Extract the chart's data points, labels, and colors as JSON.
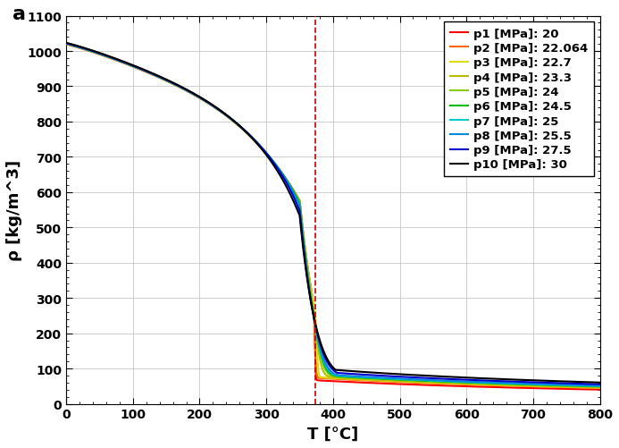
{
  "pressures": [
    20,
    22.064,
    22.7,
    23.3,
    24,
    24.5,
    25,
    25.5,
    27.5,
    30
  ],
  "labels": [
    "p1 [MPa]: 20",
    "p2 [MPa]: 22.064",
    "p3 [MPa]: 22.7",
    "p4 [MPa]: 23.3",
    "p5 [MPa]: 24",
    "p6 [MPa]: 24.5",
    "p7 [MPa]: 25",
    "p8 [MPa]: 25.5",
    "p9 [MPa]: 27.5",
    "p10 [MPa]: 30"
  ],
  "colors": [
    "#ff0000",
    "#ff6600",
    "#dddd00",
    "#bbbb00",
    "#88cc00",
    "#00bb00",
    "#00cccc",
    "#0088dd",
    "#0000cc",
    "#000000"
  ],
  "xlim": [
    0,
    800
  ],
  "ylim": [
    0,
    1100
  ],
  "xlabel": "T [°C]",
  "ylabel": "ρ [kg/m^3]",
  "panel_label": "a",
  "dashed_T": 373.946,
  "dashed_color": "#cc0000",
  "xticks": [
    0,
    100,
    200,
    300,
    400,
    500,
    600,
    700,
    800
  ],
  "yticks": [
    0,
    100,
    200,
    300,
    400,
    500,
    600,
    700,
    800,
    900,
    1000,
    1100
  ],
  "axis_fontsize": 13,
  "tick_fontsize": 10,
  "legend_fontsize": 9.5,
  "linewidth": 1.5,
  "figsize": [
    6.93,
    5.02
  ],
  "dpi": 100
}
